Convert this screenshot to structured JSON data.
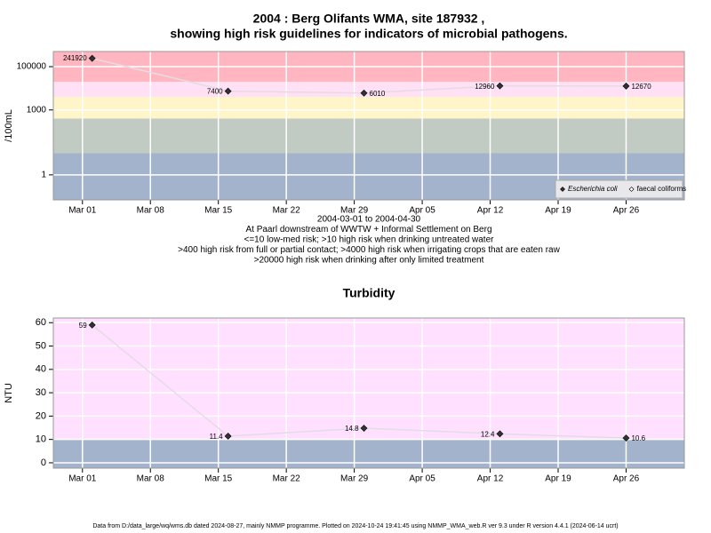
{
  "chart_data": [
    {
      "type": "line",
      "title": "2004 : Berg Olifants WMA, site 187932 ,",
      "subtitle": "showing high risk guidelines for indicators of microbial pathogens.",
      "ylabel": "/100mL",
      "log_scale": true,
      "x": [
        "2004-03-02",
        "2004-03-16",
        "2004-03-30",
        "2004-04-13",
        "2004-04-26"
      ],
      "xlim": [
        "2004-02-27",
        "2004-05-02"
      ],
      "xticks": [
        {
          "value": "2004-03-01",
          "label": "Mar 01"
        },
        {
          "value": "2004-03-08",
          "label": "Mar 08"
        },
        {
          "value": "2004-03-15",
          "label": "Mar 15"
        },
        {
          "value": "2004-03-22",
          "label": "Mar 22"
        },
        {
          "value": "2004-03-29",
          "label": "Mar 29"
        },
        {
          "value": "2004-04-05",
          "label": "Apr 05"
        },
        {
          "value": "2004-04-12",
          "label": "Apr 12"
        },
        {
          "value": "2004-04-19",
          "label": "Apr 19"
        },
        {
          "value": "2004-04-26",
          "label": "Apr 26"
        }
      ],
      "ylim": [
        0.07,
        500000
      ],
      "yticks": [
        1,
        1000,
        100000
      ],
      "thresholds": [
        10,
        400,
        4000,
        20000
      ],
      "band_colors": [
        "#a3b3cc",
        "#c1cbc3",
        "#fff5c8",
        "#ffe0f5",
        "#ffb6c1"
      ],
      "grid": true,
      "legend": "lower right",
      "series": [
        {
          "name": "Escherichia coli",
          "color": "#333333",
          "values": [
            241920,
            7400,
            6010,
            12960,
            12670
          ]
        },
        {
          "name": "faecal coliforms",
          "color": "#ffffff",
          "values": [
            null,
            null,
            null,
            null,
            null
          ]
        }
      ],
      "annotations": [
        "2004-03-01 to 2004-04-30",
        "At Paarl downstream of WWTW + Informal Settlement on Berg",
        "<=10 low-med risk; >10 high risk when drinking untreated water",
        ">400 high risk from full or partial contact; >4000 high risk when irrigating crops that are eaten raw",
        ">20000 high risk when drinking after only limited treatment"
      ]
    },
    {
      "type": "line",
      "title": "Turbidity",
      "ylabel": "NTU",
      "log_scale": false,
      "x": [
        "2004-03-02",
        "2004-03-16",
        "2004-03-30",
        "2004-04-13",
        "2004-04-26"
      ],
      "xlim": [
        "2004-02-27",
        "2004-05-02"
      ],
      "xticks": [
        {
          "value": "2004-03-01",
          "label": "Mar 01"
        },
        {
          "value": "2004-03-08",
          "label": "Mar 08"
        },
        {
          "value": "2004-03-15",
          "label": "Mar 15"
        },
        {
          "value": "2004-03-22",
          "label": "Mar 22"
        },
        {
          "value": "2004-03-29",
          "label": "Mar 29"
        },
        {
          "value": "2004-04-05",
          "label": "Apr 05"
        },
        {
          "value": "2004-04-12",
          "label": "Apr 12"
        },
        {
          "value": "2004-04-19",
          "label": "Apr 19"
        },
        {
          "value": "2004-04-26",
          "label": "Apr 26"
        }
      ],
      "ylim": [
        -2.3,
        62
      ],
      "yticks": [
        0,
        10,
        20,
        30,
        40,
        50,
        60
      ],
      "thresholds": [
        10
      ],
      "band_colors": [
        "#a3b3cc",
        "#ffe0ff"
      ],
      "grid": true,
      "series": [
        {
          "name": "Turbidity",
          "color": "#333333",
          "values": [
            59,
            11.4,
            14.8,
            12.4,
            10.6
          ]
        }
      ]
    }
  ],
  "footer": "Data from D:/data_large/wq/wms.db dated 2024-08-27, mainly NMMP programme. Plotted on 2024-10-24 19:41:45 using NMMP_WMA_web.R ver 9.3 under R version 4.4.1 (2024-06-14 ucrt)"
}
